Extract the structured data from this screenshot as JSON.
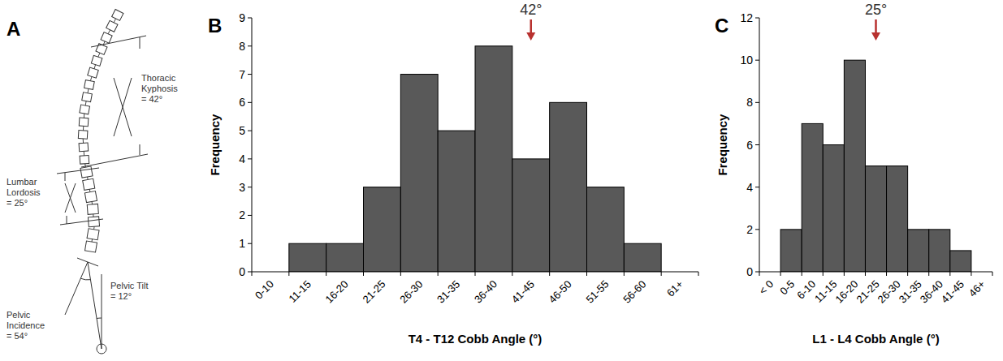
{
  "diagram": {
    "panel": "A",
    "labels": [
      "Thoracic Kyphosis = 42°",
      "Lumbar Lordosis = 25°",
      "Pelvic Tilt = 12°",
      "Pelvic Incidence = 54°"
    ]
  },
  "chart_data": [
    {
      "type": "bar",
      "panel": "B",
      "x_label": "T4 - T12 Cobb Angle (°)",
      "y_label": "Frequency",
      "categories": [
        "0-10",
        "11-15",
        "16-20",
        "21-25",
        "26-30",
        "31-35",
        "36-40",
        "41-45",
        "46-50",
        "51-55",
        "56-60",
        "61+"
      ],
      "values": [
        0,
        1,
        1,
        3,
        7,
        5,
        8,
        4,
        6,
        3,
        1,
        0
      ],
      "color": "#595959",
      "ylim": [
        0,
        9
      ],
      "yticks": [
        0,
        1,
        2,
        3,
        4,
        5,
        6,
        7,
        8,
        9
      ],
      "grid": false,
      "annotations": [
        {
          "label": "42°",
          "category": "41-45"
        }
      ]
    },
    {
      "type": "bar",
      "panel": "C",
      "x_label": "L1 - L4 Cobb Angle (°)",
      "y_label": "Frequency",
      "categories": [
        "< 0",
        "0-5",
        "6-10",
        "11-15",
        "16-20",
        "21-25",
        "26-30",
        "31-35",
        "36-40",
        "41-45",
        "46+"
      ],
      "values": [
        0,
        2,
        7,
        6,
        10,
        5,
        5,
        2,
        2,
        1,
        0
      ],
      "color": "#595959",
      "ylim": [
        0,
        12
      ],
      "yticks": [
        0,
        2,
        4,
        6,
        8,
        10,
        12
      ],
      "grid": false,
      "annotations": [
        {
          "label": "25°",
          "category": "21-25"
        }
      ]
    }
  ]
}
